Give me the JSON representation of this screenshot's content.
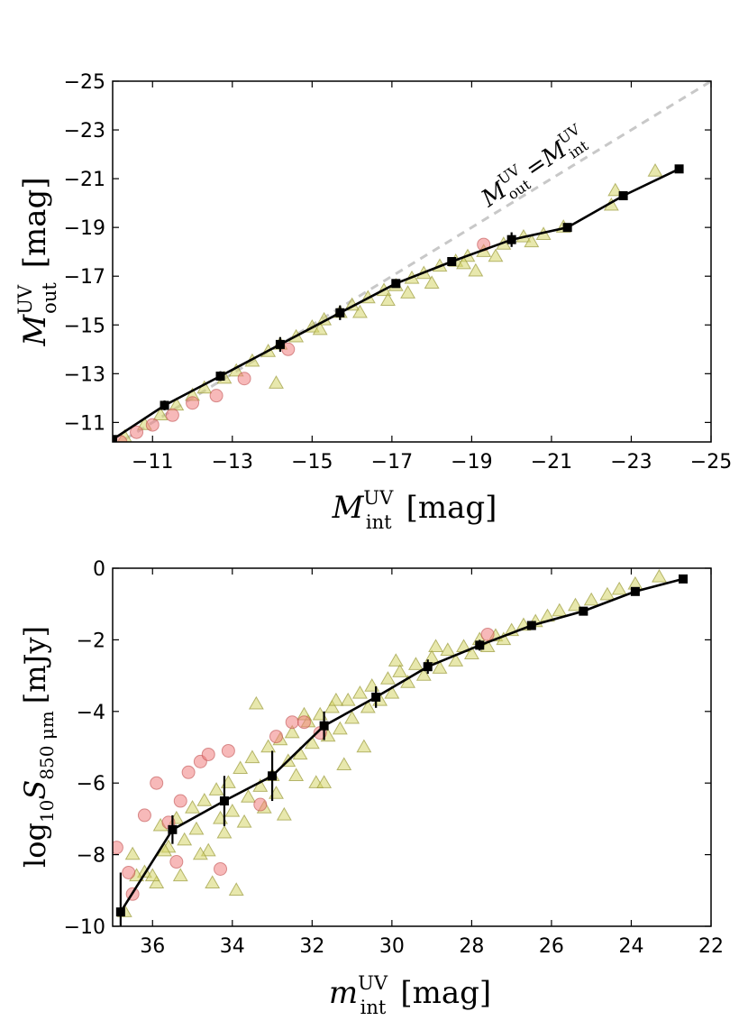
{
  "chart_data": [
    {
      "type": "scatter",
      "panel": "top",
      "xlabel": {
        "symbol": "M",
        "sup": "UV",
        "sub": "int",
        "unit": "[mag]"
      },
      "ylabel": {
        "symbol": "M",
        "sup": "UV",
        "sub": "out",
        "unit": "[mag]"
      },
      "xlim": [
        -10,
        -25
      ],
      "ylim": [
        -10.2,
        -25
      ],
      "xticks": [
        -11,
        -13,
        -15,
        -17,
        -19,
        -21,
        -23,
        -25
      ],
      "yticks": [
        -11,
        -13,
        -15,
        -17,
        -19,
        -21,
        -23,
        -25
      ],
      "xtick_labels": [
        "−11",
        "−13",
        "−15",
        "−17",
        "−19",
        "−21",
        "−23",
        "−25"
      ],
      "ytick_labels": [
        "−11",
        "−13",
        "−15",
        "−17",
        "−19",
        "−21",
        "−23",
        "−25"
      ],
      "annotation": {
        "lhs": "M",
        "lhs_sup": "UV",
        "lhs_sub": "out",
        "eq": "=",
        "rhs": "M",
        "rhs_sup": "UV",
        "rhs_sub": "int"
      },
      "series": [
        {
          "name": "one-to-one",
          "style": "dashed",
          "color": "#c8c8c8",
          "x": [
            -10,
            -25
          ],
          "y": [
            -10,
            -25
          ]
        },
        {
          "name": "median",
          "color": "#000000",
          "x": [
            -10.0,
            -11.3,
            -12.7,
            -14.2,
            -15.7,
            -17.1,
            -18.5,
            -20.0,
            -21.4,
            -22.8,
            -24.2
          ],
          "y": [
            -10.3,
            -11.7,
            -12.9,
            -14.2,
            -15.5,
            -16.7,
            -17.6,
            -18.5,
            -19.0,
            -20.3,
            -21.4
          ],
          "yerr": [
            0.1,
            0.2,
            0.2,
            0.3,
            0.3,
            0.15,
            0.15,
            0.3,
            0.1,
            0.1,
            0.1
          ]
        },
        {
          "name": "galaxies (triangles)",
          "marker": "triangle",
          "color": "#d6d66a",
          "x": [
            -10.3,
            -10.8,
            -11.2,
            -11.6,
            -12.0,
            -12.3,
            -12.8,
            -13.1,
            -13.5,
            -13.9,
            -14.2,
            -14.6,
            -15.0,
            -15.3,
            -15.7,
            -16.0,
            -16.4,
            -16.8,
            -17.1,
            -17.5,
            -17.8,
            -18.2,
            -18.6,
            -18.9,
            -19.3,
            -19.8,
            -20.3,
            -20.8,
            -21.3,
            -22.6,
            -23.6,
            -14.1,
            -16.2,
            -17.4,
            -18.8,
            -19.6,
            -20.5,
            -22.5,
            -15.2,
            -16.9,
            -18.0,
            -19.1
          ],
          "y": [
            -10.4,
            -10.9,
            -11.3,
            -11.7,
            -12.1,
            -12.4,
            -12.8,
            -13.1,
            -13.5,
            -13.9,
            -14.2,
            -14.5,
            -14.9,
            -15.2,
            -15.5,
            -15.8,
            -16.1,
            -16.4,
            -16.6,
            -16.9,
            -17.1,
            -17.4,
            -17.6,
            -17.8,
            -18.0,
            -18.3,
            -18.6,
            -18.7,
            -19.0,
            -20.5,
            -21.3,
            -12.6,
            -15.5,
            -16.3,
            -17.5,
            -17.8,
            -18.4,
            -19.9,
            -14.8,
            -16.0,
            -16.7,
            -17.2
          ]
        },
        {
          "name": "galaxies (circles)",
          "marker": "circle",
          "color": "#f08080",
          "x": [
            -10.2,
            -10.6,
            -11.0,
            -11.5,
            -12.0,
            -12.6,
            -13.3,
            -14.4,
            -19.3
          ],
          "y": [
            -10.2,
            -10.6,
            -10.9,
            -11.3,
            -11.8,
            -12.1,
            -12.8,
            -14.0,
            -18.3
          ]
        }
      ]
    },
    {
      "type": "scatter",
      "panel": "bottom",
      "xlabel": {
        "symbol": "m",
        "sup": "UV",
        "sub": "int",
        "unit": "[mag]"
      },
      "ylabel": {
        "prefix": "log",
        "prefix_sub": "10",
        "symbol": "S",
        "sub": "850 μm",
        "unit": "[mJy]"
      },
      "xlim": [
        37,
        22
      ],
      "ylim": [
        -10,
        0
      ],
      "xticks": [
        36,
        34,
        32,
        30,
        28,
        26,
        24,
        22
      ],
      "yticks": [
        0,
        -2,
        -4,
        -6,
        -8,
        -10
      ],
      "xtick_labels": [
        "36",
        "34",
        "32",
        "30",
        "28",
        "26",
        "24",
        "22"
      ],
      "ytick_labels": [
        "0",
        "−2",
        "−4",
        "−6",
        "−8",
        "−10"
      ],
      "series": [
        {
          "name": "median",
          "color": "#000000",
          "x": [
            36.8,
            35.5,
            34.2,
            33.0,
            31.7,
            30.4,
            29.1,
            27.8,
            26.5,
            25.2,
            23.9,
            22.7
          ],
          "y": [
            -9.6,
            -7.3,
            -6.5,
            -5.8,
            -4.4,
            -3.6,
            -2.75,
            -2.15,
            -1.6,
            -1.2,
            -0.65,
            -0.3
          ],
          "yerr": [
            1.1,
            0.4,
            0.7,
            0.7,
            0.4,
            0.3,
            0.2,
            0.15,
            0.1,
            0.1,
            0.05,
            0.05
          ]
        },
        {
          "name": "galaxies (triangles)",
          "marker": "triangle",
          "color": "#d6d66a",
          "x": [
            36.7,
            36.5,
            36.2,
            35.9,
            35.8,
            35.6,
            35.4,
            35.2,
            35.0,
            34.9,
            34.7,
            34.6,
            34.4,
            34.3,
            34.1,
            34.0,
            33.8,
            33.6,
            33.5,
            33.3,
            33.1,
            33.0,
            32.8,
            32.6,
            32.5,
            32.3,
            32.1,
            32.0,
            31.8,
            31.6,
            31.5,
            31.3,
            31.1,
            31.0,
            30.8,
            30.6,
            30.5,
            30.3,
            30.1,
            30.0,
            29.8,
            29.6,
            29.4,
            29.2,
            29.0,
            28.8,
            28.6,
            28.4,
            28.2,
            28.0,
            27.8,
            27.6,
            27.4,
            27.2,
            27.0,
            26.7,
            26.4,
            26.1,
            25.8,
            25.4,
            25.0,
            24.6,
            24.3,
            23.9,
            23.3,
            34.2,
            33.7,
            33.2,
            32.9,
            32.4,
            31.9,
            31.2,
            30.7,
            35.3,
            34.8,
            36.4,
            33.4,
            32.2,
            31.4,
            29.9,
            28.9,
            33.9,
            34.5,
            35.7,
            36.0,
            32.7,
            31.7
          ],
          "y": [
            -9.6,
            -8.0,
            -8.5,
            -8.8,
            -7.2,
            -7.8,
            -7.0,
            -7.6,
            -6.7,
            -7.3,
            -6.5,
            -7.9,
            -6.2,
            -7.0,
            -6.0,
            -6.8,
            -5.6,
            -6.4,
            -5.3,
            -6.1,
            -5.0,
            -5.8,
            -4.8,
            -5.4,
            -4.6,
            -5.2,
            -4.3,
            -4.9,
            -4.1,
            -4.7,
            -3.9,
            -4.5,
            -3.7,
            -4.2,
            -3.5,
            -3.9,
            -3.3,
            -3.7,
            -3.1,
            -3.5,
            -2.9,
            -3.2,
            -2.7,
            -3.0,
            -2.5,
            -2.8,
            -2.3,
            -2.6,
            -2.2,
            -2.4,
            -2.0,
            -2.2,
            -1.9,
            -2.0,
            -1.75,
            -1.6,
            -1.5,
            -1.35,
            -1.2,
            -1.05,
            -0.9,
            -0.75,
            -0.6,
            -0.45,
            -0.25,
            -7.4,
            -7.1,
            -6.7,
            -6.3,
            -5.8,
            -6.0,
            -5.5,
            -5.0,
            -8.6,
            -8.0,
            -8.6,
            -3.8,
            -4.1,
            -3.7,
            -2.6,
            -2.2,
            -9.0,
            -8.8,
            -7.9,
            -8.6,
            -6.9,
            -6.0
          ]
        },
        {
          "name": "galaxies (circles)",
          "marker": "circle",
          "color": "#f08080",
          "x": [
            36.9,
            36.6,
            36.5,
            36.2,
            35.9,
            35.6,
            35.3,
            35.1,
            34.8,
            34.6,
            34.1,
            32.9,
            32.5,
            32.2,
            35.4,
            34.3,
            33.3,
            31.8,
            27.6
          ],
          "y": [
            -7.8,
            -8.5,
            -9.1,
            -6.9,
            -6.0,
            -7.1,
            -6.5,
            -5.7,
            -5.4,
            -5.2,
            -5.1,
            -4.7,
            -4.3,
            -4.3,
            -8.2,
            -8.4,
            -6.6,
            -4.6,
            -1.85
          ]
        }
      ]
    }
  ]
}
